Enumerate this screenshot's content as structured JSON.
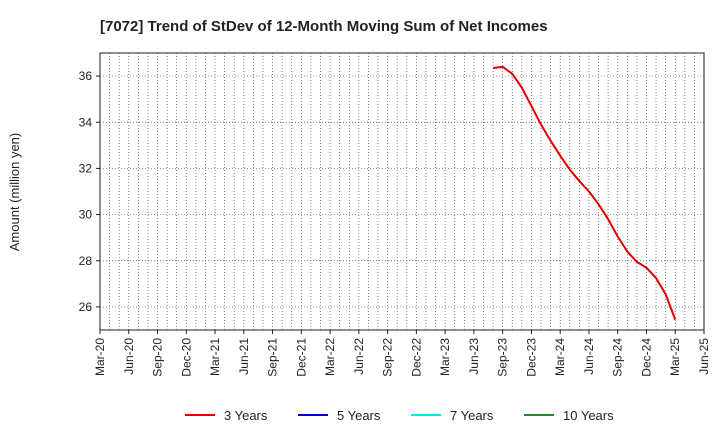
{
  "chart_data": {
    "type": "line",
    "title": "[7072]  Trend of StDev of 12-Month Moving Sum of Net Incomes",
    "xlabel": "",
    "ylabel": "Amount (million yen)",
    "x_ticks": [
      "Mar-20",
      "Jun-20",
      "Sep-20",
      "Dec-20",
      "Mar-21",
      "Jun-21",
      "Sep-21",
      "Dec-21",
      "Mar-22",
      "Jun-22",
      "Sep-22",
      "Dec-22",
      "Mar-23",
      "Jun-23",
      "Sep-23",
      "Dec-23",
      "Mar-24",
      "Jun-24",
      "Sep-24",
      "Dec-24",
      "Mar-25",
      "Jun-25"
    ],
    "y_ticks": [
      26,
      28,
      30,
      32,
      34,
      36
    ],
    "ylim": [
      25.0,
      37.0
    ],
    "grid": true,
    "legend_position": "bottom",
    "series": [
      {
        "name": "3 Years",
        "color": "#e00000",
        "x": [
          "Aug-23",
          "Sep-23",
          "Oct-23",
          "Nov-23",
          "Dec-23",
          "Jan-24",
          "Feb-24",
          "Mar-24",
          "Apr-24",
          "May-24",
          "Jun-24",
          "Jul-24",
          "Aug-24",
          "Sep-24",
          "Oct-24",
          "Nov-24",
          "Dec-24",
          "Jan-25",
          "Feb-25",
          "Mar-25"
        ],
        "values": [
          36.35,
          36.4,
          36.1,
          35.5,
          34.7,
          33.9,
          33.2,
          32.55,
          31.95,
          31.45,
          31.0,
          30.45,
          29.8,
          29.05,
          28.4,
          27.95,
          27.7,
          27.25,
          26.55,
          25.45
        ]
      },
      {
        "name": "5 Years",
        "color": "#0000cc",
        "x": [],
        "values": []
      },
      {
        "name": "7 Years",
        "color": "#00e5ee",
        "x": [],
        "values": []
      },
      {
        "name": "10 Years",
        "color": "#228b22",
        "x": [],
        "values": []
      }
    ]
  }
}
